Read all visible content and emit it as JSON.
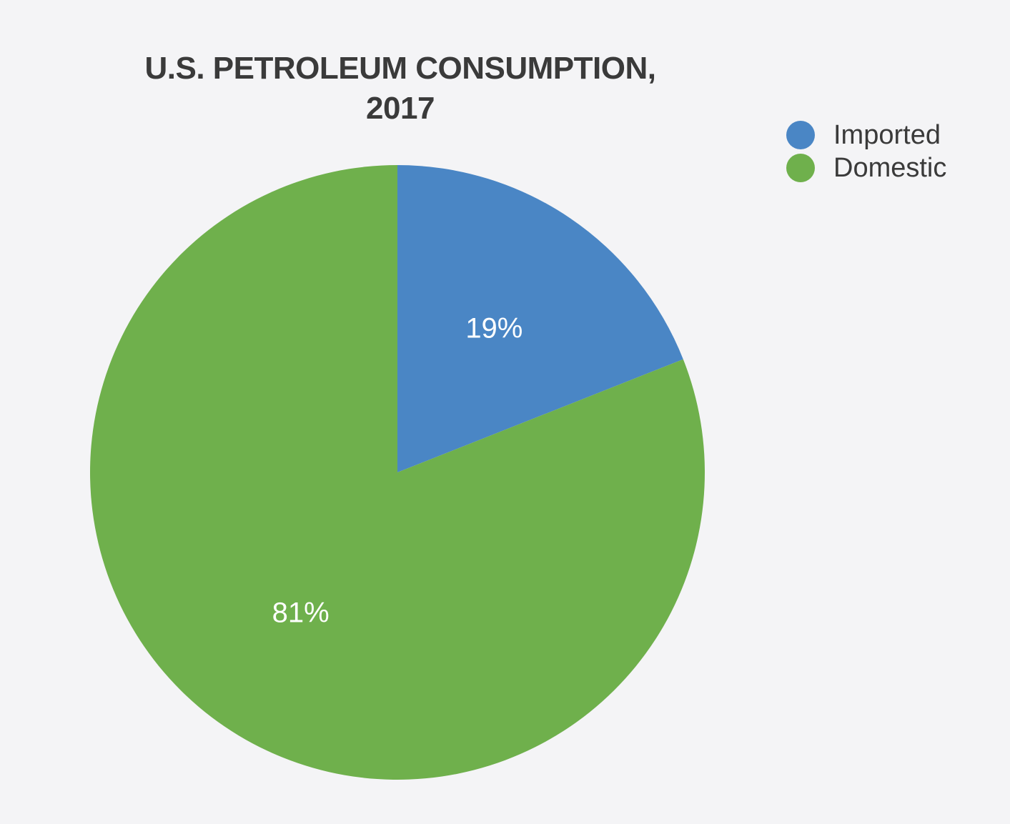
{
  "chart_data": {
    "type": "pie",
    "title": [
      "U.S. PETROLEUM CONSUMPTION,",
      "2017"
    ],
    "categories": [
      "Imported",
      "Domestic"
    ],
    "values": [
      19,
      81
    ],
    "value_labels": [
      "19%",
      "81%"
    ],
    "colors": [
      "#4a86c5",
      "#6fb04c"
    ],
    "legend": {
      "placement": "top-right",
      "entries": [
        "Imported",
        "Domestic"
      ]
    },
    "start_angle": "12 o'clock",
    "direction": "clockwise"
  }
}
